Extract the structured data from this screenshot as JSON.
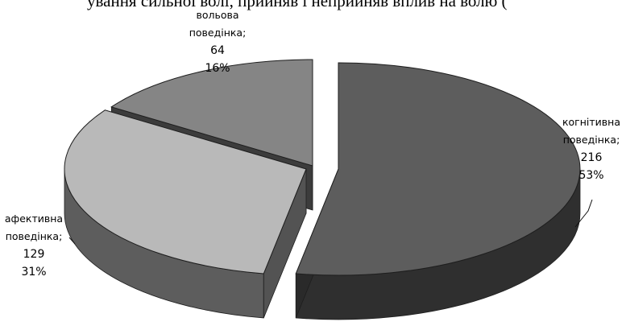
{
  "header_fragment": "ування сильної волі, прийняв і неприйняв вплив на волю (",
  "chart_data": {
    "type": "pie",
    "title": "",
    "legend": "none",
    "slices": [
      {
        "label": "когнітивна поведінка;",
        "value": 216,
        "percent": "53%",
        "color": "#5d5d5d"
      },
      {
        "label": "афективна поведінка;",
        "value": 129,
        "percent": "31%",
        "color": "#b9b9b9"
      },
      {
        "label": "вольова поведінка;",
        "value": 64,
        "percent": "16%",
        "color": "#858585"
      }
    ]
  }
}
